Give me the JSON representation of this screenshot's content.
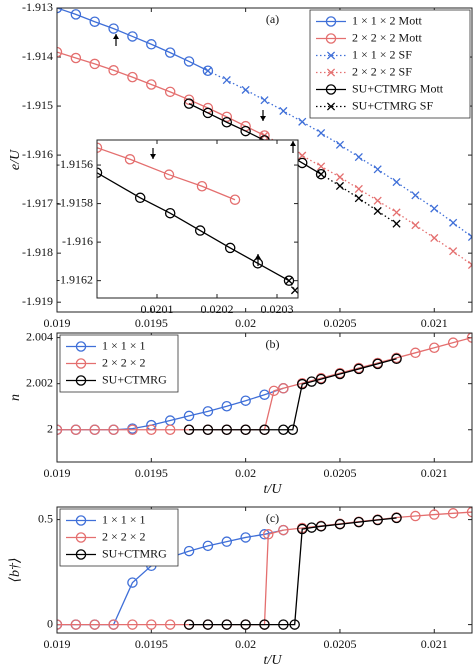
{
  "chart_data": [
    {
      "type": "line",
      "panel_label": "(a)",
      "xlabel": "t/U",
      "ylabel": "e/U",
      "xlim": [
        0.019,
        0.0212
      ],
      "ylim": [
        -1.9192,
        -1.913
      ],
      "xticks": [
        0.019,
        0.0195,
        0.02,
        0.0205,
        0.021
      ],
      "yticks": [
        -1.913,
        -1.914,
        -1.915,
        -1.916,
        -1.917,
        -1.918,
        -1.919
      ],
      "legend": "upper right",
      "series": [
        {
          "name": "1 × 1 × 2 Mott",
          "color": "#3f6fd8",
          "marker": "o",
          "linestyle": "solid",
          "x": [
            0.019,
            0.0191,
            0.0192,
            0.0193,
            0.0194,
            0.0195,
            0.0196,
            0.0197,
            0.0198
          ],
          "values": [
            -1.913,
            -1.91313,
            -1.91328,
            -1.91342,
            -1.91358,
            -1.91374,
            -1.91391,
            -1.91409,
            -1.91428
          ]
        },
        {
          "name": "2 × 2 × 2 Mott",
          "color": "#e46f6f",
          "marker": "o",
          "linestyle": "solid",
          "x": [
            0.019,
            0.0191,
            0.0192,
            0.0193,
            0.0194,
            0.0195,
            0.0196,
            0.0197,
            0.0198,
            0.0199,
            0.02,
            0.0201
          ],
          "values": [
            -1.9139,
            -1.91402,
            -1.91414,
            -1.91427,
            -1.91441,
            -1.91456,
            -1.91471,
            -1.91487,
            -1.91504,
            -1.91522,
            -1.91541,
            -1.9156
          ]
        },
        {
          "name": "1 × 1 × 2 SF",
          "color": "#3f6fd8",
          "marker": "x",
          "linestyle": "dotted",
          "x": [
            0.0198,
            0.0199,
            0.02,
            0.0201,
            0.0202,
            0.0203,
            0.0204,
            0.0205,
            0.0206,
            0.0207,
            0.0208,
            0.0209,
            0.021,
            0.0211,
            0.0212
          ],
          "values": [
            -1.91428,
            -1.91447,
            -1.91467,
            -1.91488,
            -1.9151,
            -1.91532,
            -1.91555,
            -1.91579,
            -1.91604,
            -1.91629,
            -1.91655,
            -1.91682,
            -1.91709,
            -1.91738,
            -1.91767
          ]
        },
        {
          "name": "2 × 2 × 2 SF",
          "color": "#e46f6f",
          "marker": "x",
          "linestyle": "dotted",
          "x": [
            0.0201,
            0.0202,
            0.0203,
            0.0204,
            0.0205,
            0.0206,
            0.0207,
            0.0208,
            0.0209,
            0.021,
            0.0211,
            0.0212
          ],
          "values": [
            -1.9156,
            -1.9158,
            -1.91601,
            -1.91623,
            -1.91645,
            -1.91669,
            -1.91693,
            -1.91717,
            -1.91743,
            -1.91769,
            -1.91796,
            -1.91824
          ]
        },
        {
          "name": "SU+CTMRG Mott",
          "color": "#000000",
          "marker": "o",
          "linestyle": "solid",
          "x": [
            0.0197,
            0.0198,
            0.0199,
            0.02,
            0.0201,
            0.0202,
            0.0203,
            0.0204
          ],
          "values": [
            -1.91495,
            -1.91514,
            -1.91533,
            -1.91551,
            -1.9157,
            -1.91593,
            -1.91616,
            -1.91639
          ]
        },
        {
          "name": "SU+CTMRG SF",
          "color": "#000000",
          "marker": "x",
          "linestyle": "dotted",
          "x": [
            0.0204,
            0.0205,
            0.0206,
            0.0207,
            0.0208
          ],
          "values": [
            -1.91639,
            -1.91663,
            -1.91688,
            -1.91714,
            -1.9174
          ]
        }
      ]
    },
    {
      "type": "line",
      "xlim": [
        0.02,
        0.020335
      ],
      "ylim": [
        -1.91629,
        -1.91547
      ],
      "xticks": [
        0.0201,
        0.0202,
        0.0203
      ],
      "yticks": [
        -1.9156,
        -1.9158,
        -1.916,
        -1.9162
      ],
      "series": [
        {
          "color": "#e46f6f",
          "marker": "o",
          "linestyle": "solid",
          "x": [
            0.02,
            0.020055,
            0.02012,
            0.020175,
            0.02023
          ],
          "values": [
            -1.91551,
            -1.91557,
            -1.91565,
            -1.91571,
            -1.91578
          ]
        },
        {
          "color": "#000000",
          "marker": "o",
          "linestyle": "solid",
          "x": [
            0.02,
            0.020072,
            0.020122,
            0.020172,
            0.020222,
            0.020268,
            0.02032
          ],
          "values": [
            -1.91564,
            -1.91577,
            -1.91585,
            -1.91594,
            -1.91603,
            -1.91611,
            -1.9162
          ]
        },
        {
          "color": "#000000",
          "marker": "x",
          "linestyle": "dotted",
          "x": [
            0.02032,
            0.02033
          ],
          "values": [
            -1.9162,
            -1.91625
          ]
        }
      ]
    },
    {
      "type": "line",
      "panel_label": "(b)",
      "xlabel": "t/U",
      "ylabel": "n",
      "xlim": [
        0.019,
        0.0212
      ],
      "ylim": [
        1.9986,
        2.0042
      ],
      "xticks": [
        0.019,
        0.0195,
        0.02,
        0.0205,
        0.021
      ],
      "yticks": [
        2,
        2.002,
        2.004
      ],
      "legend": "upper left",
      "series": [
        {
          "name": "1 × 1 × 1",
          "color": "#3f6fd8",
          "marker": "o",
          "linestyle": "solid",
          "x": [
            0.019,
            0.0191,
            0.0192,
            0.0193,
            0.0194,
            0.0195,
            0.0196,
            0.0197,
            0.0198,
            0.0199,
            0.02,
            0.0201,
            0.0202
          ],
          "values": [
            2,
            2,
            2,
            2,
            2.00005,
            2.0002,
            2.0004,
            2.0006,
            2.0008,
            2.00102,
            2.00126,
            2.00152,
            2.0018
          ]
        },
        {
          "name": "2 × 2 × 2",
          "color": "#e46f6f",
          "marker": "o",
          "linestyle": "solid",
          "x": [
            0.019,
            0.0191,
            0.0192,
            0.0193,
            0.0194,
            0.0195,
            0.0196,
            0.0197,
            0.0198,
            0.0199,
            0.02,
            0.0201,
            0.02015,
            0.0202,
            0.0203,
            0.0204,
            0.0205,
            0.0206,
            0.0207,
            0.0208,
            0.0209,
            0.021,
            0.0211,
            0.0212
          ],
          "values": [
            2,
            2,
            2,
            2,
            2,
            2,
            2,
            2,
            2,
            2,
            2,
            2,
            2.00169,
            2.0018,
            2.00202,
            2.00224,
            2.00246,
            2.00268,
            2.0029,
            2.00312,
            2.00334,
            2.00356,
            2.00378,
            2.004
          ]
        },
        {
          "name": "SU+CTMRG",
          "color": "#000000",
          "marker": "o",
          "linestyle": "solid",
          "x": [
            0.0197,
            0.0198,
            0.0199,
            0.02,
            0.0201,
            0.0202,
            0.02025,
            0.0203,
            0.02035,
            0.0204,
            0.0205,
            0.0206,
            0.0207,
            0.0208
          ],
          "values": [
            2,
            2,
            2,
            2,
            2,
            2,
            2,
            2.00198,
            2.00209,
            2.0022,
            2.00242,
            2.00264,
            2.00286,
            2.00308
          ]
        }
      ]
    },
    {
      "type": "line",
      "panel_label": "(c)",
      "xlabel": "t/U",
      "ylabel": "⟨b†⟩",
      "xlim": [
        0.019,
        0.0212
      ],
      "ylim": [
        -0.04,
        0.56
      ],
      "xticks": [
        0.019,
        0.0195,
        0.02,
        0.0205,
        0.021
      ],
      "yticks": [
        0,
        0.5
      ],
      "legend": "upper left",
      "series": [
        {
          "name": "1 × 1 × 1",
          "color": "#3f6fd8",
          "marker": "o",
          "linestyle": "solid",
          "x": [
            0.019,
            0.0191,
            0.0192,
            0.0193,
            0.0194,
            0.0195,
            0.0196,
            0.0197,
            0.0198,
            0.0199,
            0.02,
            0.0201,
            0.0202
          ],
          "values": [
            0,
            0,
            0,
            0,
            0.2,
            0.28,
            0.32,
            0.35,
            0.375,
            0.395,
            0.415,
            0.43,
            0.45
          ]
        },
        {
          "name": "2 × 2 × 2",
          "color": "#e46f6f",
          "marker": "o",
          "linestyle": "solid",
          "x": [
            0.019,
            0.0191,
            0.0192,
            0.0193,
            0.0194,
            0.0195,
            0.0196,
            0.0197,
            0.0198,
            0.0199,
            0.02,
            0.0201,
            0.02012,
            0.0202,
            0.0203,
            0.0204,
            0.0205,
            0.0206,
            0.0207,
            0.0208,
            0.0209,
            0.021,
            0.0211,
            0.0212
          ],
          "values": [
            0,
            0,
            0,
            0,
            0,
            0,
            0,
            0,
            0,
            0,
            0,
            0,
            0.43,
            0.45,
            0.46,
            0.47,
            0.48,
            0.49,
            0.5,
            0.51,
            0.517,
            0.524,
            0.53,
            0.536
          ]
        },
        {
          "name": "SU+CTMRG",
          "color": "#000000",
          "marker": "o",
          "linestyle": "solid",
          "x": [
            0.0197,
            0.0198,
            0.0199,
            0.02,
            0.0201,
            0.0202,
            0.02026,
            0.0203,
            0.02035,
            0.0204,
            0.0205,
            0.0206,
            0.0207,
            0.0208
          ],
          "values": [
            0,
            0,
            0,
            0,
            0,
            0,
            0,
            0.455,
            0.462,
            0.468,
            0.478,
            0.488,
            0.498,
            0.508
          ]
        }
      ]
    }
  ]
}
